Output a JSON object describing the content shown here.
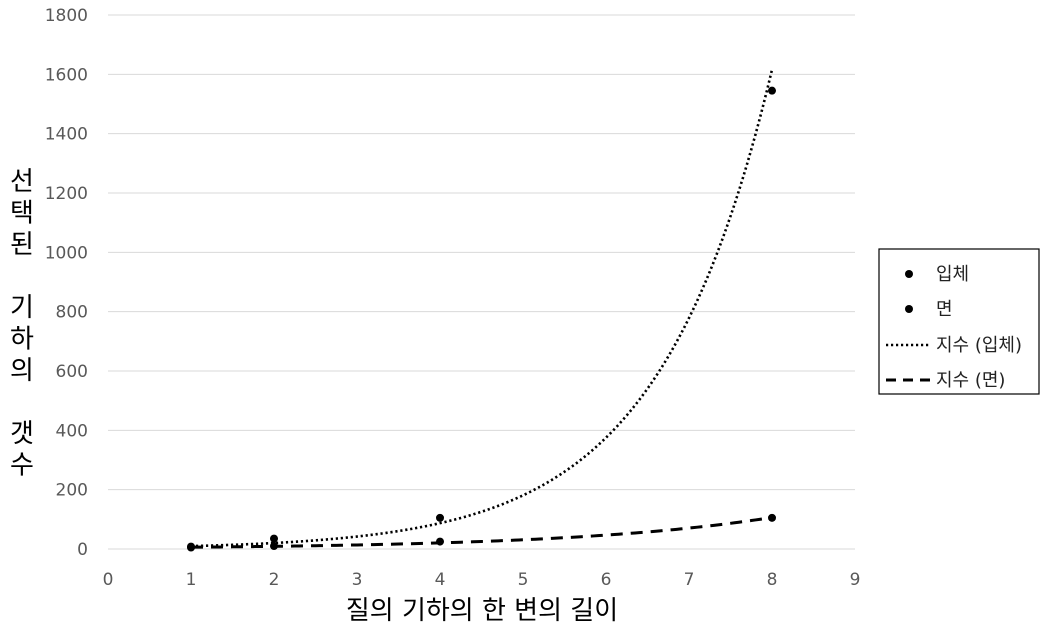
{
  "chart_data": {
    "type": "scatter",
    "xlabel": "질의 기하의 한 변의 길이",
    "ylabel": "선택된 기하의 갯수",
    "xlim": [
      0,
      9
    ],
    "ylim": [
      0,
      1800
    ],
    "x_ticks": [
      0,
      1,
      2,
      3,
      4,
      5,
      6,
      7,
      8,
      9
    ],
    "y_ticks": [
      0,
      200,
      400,
      600,
      800,
      1000,
      1200,
      1400,
      1600,
      1800
    ],
    "grid": "horizontal",
    "legend_position": "right",
    "series": [
      {
        "name": "입체",
        "kind": "points",
        "x": [
          1,
          2,
          4,
          8
        ],
        "y": [
          8,
          35,
          105,
          1545
        ]
      },
      {
        "name": "면",
        "kind": "points",
        "x": [
          1,
          2,
          4,
          8
        ],
        "y": [
          5,
          10,
          25,
          105
        ]
      },
      {
        "name": "지수 (입체)",
        "kind": "trendline",
        "style": "dotted",
        "fit": "exponential",
        "x_range": [
          1,
          8
        ],
        "a": 4.7,
        "b": 0.73
      },
      {
        "name": "지수 (면)",
        "kind": "trendline",
        "style": "dashed",
        "fit": "exponential",
        "x_range": [
          1,
          8
        ],
        "a": 4.0,
        "b": 0.41
      }
    ],
    "colors": {
      "marker": "#000000",
      "grid": "#d9d9d9",
      "tick_text": "#595959"
    }
  }
}
